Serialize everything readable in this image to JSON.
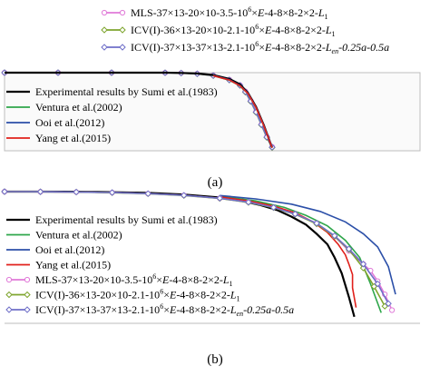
{
  "chart_data": [
    {
      "type": "line",
      "caption": "(a)",
      "xlabel": "",
      "ylabel": "",
      "grid": false,
      "legend_placement": "top-right and bottom-left",
      "series": [
        {
          "name": "MLS-37×13-20×10-3.5-10^6×E-4-8×8-2×2-L1",
          "color": "#e07ad8",
          "marker": "circle",
          "x": [
            0,
            0.2,
            0.4,
            0.6,
            0.66,
            0.72,
            0.78,
            0.84,
            0.88,
            0.9,
            0.92,
            0.94,
            0.96,
            0.98,
            1.0
          ],
          "y": [
            1.0,
            1.0,
            1.0,
            0.999,
            0.996,
            0.987,
            0.965,
            0.91,
            0.84,
            0.76,
            0.64,
            0.5,
            0.34,
            0.18,
            0.05
          ]
        },
        {
          "name": "ICV(I)-36×13-20×10-2.1-10^6×E-4-8×8-2×2-L1",
          "color": "#7ea52e",
          "marker": "diamond",
          "x": [
            0,
            0.2,
            0.4,
            0.6,
            0.66,
            0.72,
            0.78,
            0.84,
            0.88,
            0.9,
            0.92,
            0.94,
            0.96,
            0.98,
            1.0
          ],
          "y": [
            1.0,
            1.0,
            1.0,
            0.999,
            0.995,
            0.985,
            0.962,
            0.905,
            0.835,
            0.75,
            0.63,
            0.49,
            0.33,
            0.17,
            0.04
          ]
        },
        {
          "name": "ICV(I)-37×13-37×13-2.1-10^6×E-4-8×8-2×2-Len-0.25a-0.5a",
          "color": "#6f6fc8",
          "marker": "diamond",
          "x": [
            0,
            0.2,
            0.4,
            0.6,
            0.66,
            0.72,
            0.78,
            0.84,
            0.88,
            0.9,
            0.92,
            0.94,
            0.96,
            0.98,
            1.0
          ],
          "y": [
            1.0,
            1.0,
            1.0,
            0.999,
            0.995,
            0.986,
            0.963,
            0.907,
            0.838,
            0.755,
            0.635,
            0.495,
            0.335,
            0.175,
            0.045
          ]
        },
        {
          "name": "Experimental results by Sumi et al.(1983)",
          "color": "#000000",
          "marker": "none",
          "x": [
            0,
            0.2,
            0.4,
            0.6,
            0.66,
            0.72,
            0.78,
            0.84,
            0.88,
            0.91,
            0.94,
            0.97,
            1.0
          ],
          "y": [
            1.0,
            1.0,
            1.0,
            1.0,
            0.997,
            0.989,
            0.97,
            0.92,
            0.85,
            0.74,
            0.56,
            0.32,
            0.04
          ]
        },
        {
          "name": "Ventura et al.(2002)",
          "color": "#2ea64a",
          "marker": "none",
          "x": [
            0.78,
            0.84,
            0.88,
            0.91,
            0.94,
            0.97,
            1.0
          ],
          "y": [
            0.96,
            0.905,
            0.83,
            0.73,
            0.55,
            0.31,
            0.05
          ]
        },
        {
          "name": "Ooi et al.(2012)",
          "color": "#2b4fa8",
          "marker": "none",
          "x": [
            0.78,
            0.84,
            0.88,
            0.91,
            0.94,
            0.97,
            1.0
          ],
          "y": [
            0.965,
            0.91,
            0.835,
            0.735,
            0.555,
            0.315,
            0.05
          ]
        },
        {
          "name": "Yang et al.(2015)",
          "color": "#e0201b",
          "marker": "none",
          "x": [
            0.78,
            0.84,
            0.88,
            0.91,
            0.94,
            0.97,
            1.0
          ],
          "y": [
            0.962,
            0.906,
            0.832,
            0.732,
            0.552,
            0.312,
            0.04
          ]
        }
      ]
    },
    {
      "type": "line",
      "caption": "(b)",
      "xlabel": "",
      "ylabel": "",
      "grid": false,
      "legend_placement": "bottom-left",
      "series": [
        {
          "name": "Experimental results by Sumi et al.(1983)",
          "color": "#000000",
          "marker": "none",
          "x": [
            0,
            0.1,
            0.2,
            0.3,
            0.4,
            0.5,
            0.6,
            0.66,
            0.71,
            0.76,
            0.8,
            0.84,
            0.87,
            0.9,
            0.92,
            0.94,
            0.96,
            0.975
          ],
          "y": [
            1.0,
            1.0,
            0.999,
            0.996,
            0.99,
            0.978,
            0.955,
            0.93,
            0.9,
            0.86,
            0.81,
            0.75,
            0.68,
            0.6,
            0.5,
            0.38,
            0.2,
            0.05
          ]
        },
        {
          "name": "Ventura et al.(2002)",
          "color": "#2ea64a",
          "marker": "none",
          "x": [
            0.6,
            0.7,
            0.78,
            0.84,
            0.9,
            0.95,
            0.99,
            1.02,
            1.05
          ],
          "y": [
            0.965,
            0.93,
            0.88,
            0.82,
            0.74,
            0.63,
            0.5,
            0.3,
            0.08
          ]
        },
        {
          "name": "Ooi et al.(2012)",
          "color": "#2b4fa8",
          "marker": "none",
          "x": [
            0.6,
            0.7,
            0.8,
            0.88,
            0.95,
            1.0,
            1.04,
            1.07,
            1.09
          ],
          "y": [
            0.97,
            0.945,
            0.905,
            0.85,
            0.77,
            0.68,
            0.58,
            0.43,
            0.22
          ]
        },
        {
          "name": "Yang et al.(2015)",
          "color": "#e0201b",
          "marker": "none",
          "x": [
            0.6,
            0.68,
            0.75,
            0.81,
            0.86,
            0.9,
            0.93,
            0.95,
            0.96,
            0.97,
            0.97,
            0.98
          ],
          "y": [
            0.96,
            0.93,
            0.89,
            0.84,
            0.77,
            0.69,
            0.6,
            0.52,
            0.45,
            0.37,
            0.27,
            0.12
          ]
        },
        {
          "name": "MLS-37×13-20×10-3.5-10^6×E-4-8×8-2×2-L1",
          "color": "#e07ad8",
          "marker": "circle",
          "x": [
            0,
            0.1,
            0.2,
            0.3,
            0.4,
            0.5,
            0.6,
            0.68,
            0.75,
            0.81,
            0.87,
            0.92,
            0.96,
            1.0,
            1.02,
            1.04,
            1.06,
            1.08
          ],
          "y": [
            1.0,
            0.999,
            0.997,
            0.993,
            0.985,
            0.972,
            0.95,
            0.92,
            0.88,
            0.83,
            0.76,
            0.66,
            0.55,
            0.45,
            0.4,
            0.32,
            0.22,
            0.1
          ]
        },
        {
          "name": "ICV(I)-36×13-20×10-2.1-10^6×E-4-8×8-2×2-L1",
          "color": "#7ea52e",
          "marker": "diamond",
          "x": [
            0,
            0.1,
            0.2,
            0.3,
            0.4,
            0.5,
            0.6,
            0.68,
            0.75,
            0.81,
            0.87,
            0.92,
            0.96,
            1.0,
            1.03,
            1.06
          ],
          "y": [
            1.0,
            0.999,
            0.997,
            0.992,
            0.984,
            0.97,
            0.948,
            0.918,
            0.878,
            0.828,
            0.755,
            0.66,
            0.56,
            0.42,
            0.28,
            0.13
          ]
        },
        {
          "name": "ICV(I)-37×13-37×13-2.1-10^6×E-4-8×8-2×2-Len-0.25a-0.5a",
          "color": "#6f6fc8",
          "marker": "diamond",
          "x": [
            0,
            0.1,
            0.2,
            0.3,
            0.4,
            0.5,
            0.6,
            0.68,
            0.75,
            0.81,
            0.87,
            0.92,
            0.96,
            1.0,
            1.04,
            1.07
          ],
          "y": [
            1.0,
            0.999,
            0.997,
            0.993,
            0.985,
            0.972,
            0.95,
            0.92,
            0.88,
            0.83,
            0.76,
            0.665,
            0.565,
            0.45,
            0.3,
            0.15
          ]
        }
      ]
    }
  ],
  "legend_a_top": [
    {
      "text": "MLS-37×13-20×10-3.5-10",
      "sup": "6",
      "rest": "×",
      "italic": "E",
      "rest2": "-4-8×8-2×2-",
      "italic2": "L",
      "sub": "1",
      "tail": "",
      "color": "#e07ad8",
      "marker": "circle"
    },
    {
      "text": "ICV(I)-36×13-20×10-2.1-10",
      "sup": "6",
      "rest": "×",
      "italic": "E",
      "rest2": "-4-8×8-2×2-",
      "italic2": "L",
      "sub": "1",
      "tail": "",
      "color": "#7ea52e",
      "marker": "diamond"
    },
    {
      "text": "ICV(I)-37×13-37×13-2.1-10",
      "sup": "6",
      "rest": "×",
      "italic": "E",
      "rest2": "-4-8×8-2×2-",
      "italic2": "L",
      "sub": "en",
      "tail": "-0.25a-0.5a",
      "color": "#6f6fc8",
      "marker": "diamond"
    }
  ],
  "legend_a_bottom": [
    {
      "text": "Experimental results by Sumi et al.(1983)",
      "color": "#000000"
    },
    {
      "text": "Ventura et al.(2002)",
      "color": "#2ea64a"
    },
    {
      "text": "Ooi et al.(2012)",
      "color": "#2b4fa8"
    },
    {
      "text": "Yang et al.(2015)",
      "color": "#e0201b"
    }
  ],
  "legend_b": [
    {
      "text": "Experimental results by Sumi et al.(1983)",
      "color": "#000000",
      "marker": "none"
    },
    {
      "text": "Ventura et al.(2002)",
      "color": "#2ea64a",
      "marker": "none"
    },
    {
      "text": "Ooi et al.(2012)",
      "color": "#2b4fa8",
      "marker": "none"
    },
    {
      "text": "Yang et al.(2015)",
      "color": "#e0201b",
      "marker": "none"
    },
    {
      "text": "MLS-37×13-20×10-3.5-10",
      "sup": "6",
      "rest": "×",
      "italic": "E",
      "rest2": "-4-8×8-2×2-",
      "italic2": "L",
      "sub": "1",
      "tail": "",
      "color": "#e07ad8",
      "marker": "circle"
    },
    {
      "text": "ICV(I)-36×13-20×10-2.1-10",
      "sup": "6",
      "rest": "×",
      "italic": "E",
      "rest2": "-4-8×8-2×2-",
      "italic2": "L",
      "sub": "1",
      "tail": "",
      "color": "#7ea52e",
      "marker": "diamond"
    },
    {
      "text": "ICV(I)-37×13-37×13-2.1-10",
      "sup": "6",
      "rest": "×",
      "italic": "E",
      "rest2": "-4-8×8-2×2-",
      "italic2": "L",
      "sub": "en",
      "tail": "-0.25a-0.5a",
      "color": "#6f6fc8",
      "marker": "diamond"
    }
  ],
  "captions": {
    "a": "(a)",
    "b": "(b)"
  }
}
